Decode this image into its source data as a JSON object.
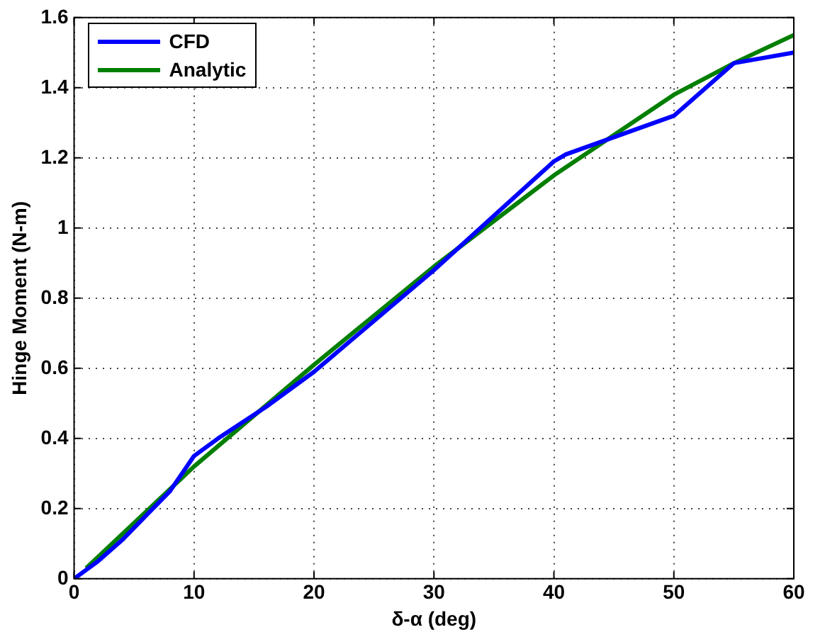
{
  "chart_data": {
    "type": "line",
    "xlabel": "δ-α (deg)",
    "ylabel": "Hinge Moment (N-m)",
    "xlim": [
      0,
      60
    ],
    "xticks": [
      0,
      10,
      20,
      30,
      40,
      50,
      60
    ],
    "ylim": [
      0,
      1.6
    ],
    "yticks": [
      0,
      0.2,
      0.4,
      0.6,
      0.8,
      1,
      1.2,
      1.4,
      1.6
    ],
    "grid": true,
    "legend": "top left",
    "marker": "none",
    "line_style": "solid",
    "series": [
      {
        "name": "CFD",
        "color": "#0000ff",
        "x": [
          0,
          2,
          4,
          6,
          8,
          10,
          12,
          16,
          20,
          30,
          40,
          41,
          50,
          55,
          60
        ],
        "values": [
          0,
          0.05,
          0.11,
          0.18,
          0.25,
          0.35,
          0.4,
          0.49,
          0.59,
          0.88,
          1.19,
          1.21,
          1.32,
          1.47,
          1.5
        ]
      },
      {
        "name": "Analytic",
        "color": "#007f00",
        "x": [
          1,
          10,
          20,
          30,
          40,
          50,
          55,
          60
        ],
        "values": [
          0.03,
          0.32,
          0.61,
          0.89,
          1.15,
          1.38,
          1.47,
          1.55
        ]
      }
    ]
  }
}
